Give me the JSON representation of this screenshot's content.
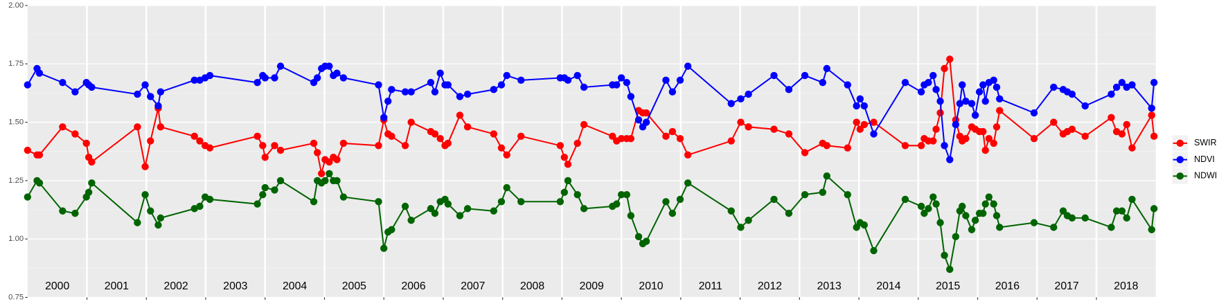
{
  "chart_data": {
    "type": "line",
    "x": [
      2000.0,
      2000.16,
      2000.2,
      2000.59,
      2000.8,
      2000.99,
      2001.03,
      2001.08,
      2001.85,
      2001.98,
      2002.07,
      2002.2,
      2002.24,
      2002.81,
      2002.9,
      2002.99,
      2003.07,
      2003.87,
      2003.96,
      2004.0,
      2004.16,
      2004.26,
      2004.82,
      2004.88,
      2004.95,
      2005.01,
      2005.08,
      2005.15,
      2005.21,
      2005.32,
      2005.91,
      2006.0,
      2006.07,
      2006.13,
      2006.36,
      2006.46,
      2006.79,
      2006.86,
      2006.95,
      2007.03,
      2007.08,
      2007.28,
      2007.41,
      2007.85,
      2007.98,
      2008.07,
      2008.31,
      2008.97,
      2009.04,
      2009.1,
      2009.26,
      2009.37,
      2009.85,
      2009.92,
      2010.0,
      2010.09,
      2010.16,
      2010.29,
      2010.36,
      2010.42,
      2010.75,
      2010.86,
      2010.99,
      2011.12,
      2011.85,
      2012.01,
      2012.14,
      2012.57,
      2012.82,
      2013.09,
      2013.39,
      2013.46,
      2013.81,
      2013.96,
      2014.02,
      2014.09,
      2014.25,
      2014.78,
      2015.05,
      2015.1,
      2015.17,
      2015.25,
      2015.3,
      2015.37,
      2015.44,
      2015.53,
      2015.63,
      2015.7,
      2015.74,
      2015.8,
      2015.9,
      2015.96,
      2016.03,
      2016.09,
      2016.13,
      2016.19,
      2016.27,
      2016.32,
      2016.37,
      2016.95,
      2017.28,
      2017.44,
      2017.51,
      2017.59,
      2017.81,
      2018.25,
      2018.34,
      2018.43,
      2018.51,
      2018.6,
      2018.93,
      2018.97
    ],
    "series": [
      {
        "name": "SWIR",
        "color": "#ff0000",
        "values": [
          1.38,
          1.36,
          1.36,
          1.48,
          1.45,
          1.41,
          1.35,
          1.33,
          1.48,
          1.31,
          1.42,
          1.56,
          1.48,
          1.44,
          1.42,
          1.4,
          1.39,
          1.44,
          1.4,
          1.35,
          1.4,
          1.38,
          1.41,
          1.37,
          1.28,
          1.34,
          1.33,
          1.35,
          1.34,
          1.41,
          1.4,
          1.51,
          1.45,
          1.44,
          1.4,
          1.5,
          1.46,
          1.45,
          1.43,
          1.4,
          1.41,
          1.53,
          1.48,
          1.45,
          1.39,
          1.36,
          1.44,
          1.4,
          1.35,
          1.32,
          1.41,
          1.49,
          1.44,
          1.42,
          1.43,
          1.43,
          1.43,
          1.55,
          1.54,
          1.54,
          1.44,
          1.46,
          1.43,
          1.36,
          1.42,
          1.5,
          1.48,
          1.47,
          1.45,
          1.37,
          1.41,
          1.4,
          1.39,
          1.5,
          1.47,
          1.49,
          1.5,
          1.4,
          1.4,
          1.43,
          1.42,
          1.42,
          1.47,
          1.54,
          1.73,
          1.77,
          1.51,
          1.44,
          1.42,
          1.43,
          1.48,
          1.47,
          1.46,
          1.46,
          1.38,
          1.43,
          1.41,
          1.48,
          1.55,
          1.43,
          1.5,
          1.45,
          1.46,
          1.47,
          1.44,
          1.52,
          1.46,
          1.45,
          1.49,
          1.39,
          1.53,
          1.44
        ]
      },
      {
        "name": "NDVI",
        "color": "#0000ff",
        "values": [
          1.66,
          1.73,
          1.71,
          1.67,
          1.63,
          1.67,
          1.66,
          1.65,
          1.62,
          1.66,
          1.61,
          1.57,
          1.63,
          1.68,
          1.68,
          1.69,
          1.7,
          1.67,
          1.7,
          1.69,
          1.69,
          1.74,
          1.67,
          1.69,
          1.73,
          1.74,
          1.74,
          1.7,
          1.71,
          1.69,
          1.66,
          1.52,
          1.59,
          1.64,
          1.63,
          1.63,
          1.67,
          1.63,
          1.71,
          1.66,
          1.66,
          1.61,
          1.62,
          1.64,
          1.66,
          1.7,
          1.68,
          1.69,
          1.69,
          1.68,
          1.7,
          1.65,
          1.66,
          1.66,
          1.69,
          1.67,
          1.61,
          1.51,
          1.48,
          1.5,
          1.68,
          1.63,
          1.68,
          1.74,
          1.58,
          1.6,
          1.62,
          1.7,
          1.64,
          1.7,
          1.67,
          1.73,
          1.66,
          1.57,
          1.6,
          1.57,
          1.45,
          1.67,
          1.63,
          1.66,
          1.67,
          1.7,
          1.64,
          1.59,
          1.4,
          1.34,
          1.49,
          1.58,
          1.66,
          1.59,
          1.58,
          1.53,
          1.63,
          1.66,
          1.59,
          1.67,
          1.68,
          1.65,
          1.6,
          1.54,
          1.65,
          1.64,
          1.63,
          1.62,
          1.57,
          1.62,
          1.65,
          1.67,
          1.65,
          1.66,
          1.56,
          1.67
        ]
      },
      {
        "name": "NDWI",
        "color": "#006400",
        "values": [
          1.18,
          1.25,
          1.24,
          1.12,
          1.11,
          1.18,
          1.2,
          1.24,
          1.07,
          1.19,
          1.12,
          1.06,
          1.09,
          1.13,
          1.14,
          1.18,
          1.17,
          1.15,
          1.19,
          1.22,
          1.21,
          1.25,
          1.16,
          1.25,
          1.24,
          1.25,
          1.28,
          1.25,
          1.25,
          1.18,
          1.16,
          0.96,
          1.03,
          1.04,
          1.14,
          1.08,
          1.13,
          1.11,
          1.16,
          1.17,
          1.15,
          1.1,
          1.13,
          1.12,
          1.16,
          1.22,
          1.16,
          1.16,
          1.2,
          1.25,
          1.19,
          1.13,
          1.14,
          1.15,
          1.19,
          1.19,
          1.1,
          1.01,
          0.98,
          0.99,
          1.16,
          1.11,
          1.17,
          1.24,
          1.12,
          1.05,
          1.08,
          1.17,
          1.11,
          1.19,
          1.2,
          1.27,
          1.19,
          1.05,
          1.07,
          1.06,
          0.95,
          1.17,
          1.14,
          1.11,
          1.13,
          1.18,
          1.15,
          1.07,
          0.93,
          0.87,
          1.01,
          1.12,
          1.14,
          1.1,
          1.04,
          1.08,
          1.11,
          1.11,
          1.15,
          1.18,
          1.15,
          1.1,
          1.05,
          1.07,
          1.05,
          1.12,
          1.1,
          1.09,
          1.09,
          1.05,
          1.12,
          1.12,
          1.09,
          1.17,
          1.04,
          1.13
        ]
      }
    ],
    "xlim": [
      2000,
      2019
    ],
    "xticks": [
      {
        "value": 2000.5,
        "label": "2000"
      },
      {
        "value": 2001.5,
        "label": "2001"
      },
      {
        "value": 2002.5,
        "label": "2002"
      },
      {
        "value": 2003.5,
        "label": "2003"
      },
      {
        "value": 2004.5,
        "label": "2004"
      },
      {
        "value": 2005.5,
        "label": "2005"
      },
      {
        "value": 2006.5,
        "label": "2006"
      },
      {
        "value": 2007.5,
        "label": "2007"
      },
      {
        "value": 2008.5,
        "label": "2008"
      },
      {
        "value": 2009.5,
        "label": "2009"
      },
      {
        "value": 2010.5,
        "label": "2010"
      },
      {
        "value": 2011.5,
        "label": "2011"
      },
      {
        "value": 2012.5,
        "label": "2012"
      },
      {
        "value": 2013.5,
        "label": "2013"
      },
      {
        "value": 2014.5,
        "label": "2014"
      },
      {
        "value": 2015.5,
        "label": "2015"
      },
      {
        "value": 2016.5,
        "label": "2016"
      },
      {
        "value": 2017.5,
        "label": "2017"
      },
      {
        "value": 2018.5,
        "label": "2018"
      }
    ],
    "ylim": [
      0.75,
      2
    ],
    "yticks": [
      0.75,
      {
        "value": 1,
        "label": "1.00"
      },
      1.25,
      {
        "value": 1.5,
        "label": "1.50"
      },
      1.75,
      {
        "value": 2,
        "label": "2.00"
      }
    ],
    "grid": true,
    "legend": "right"
  }
}
